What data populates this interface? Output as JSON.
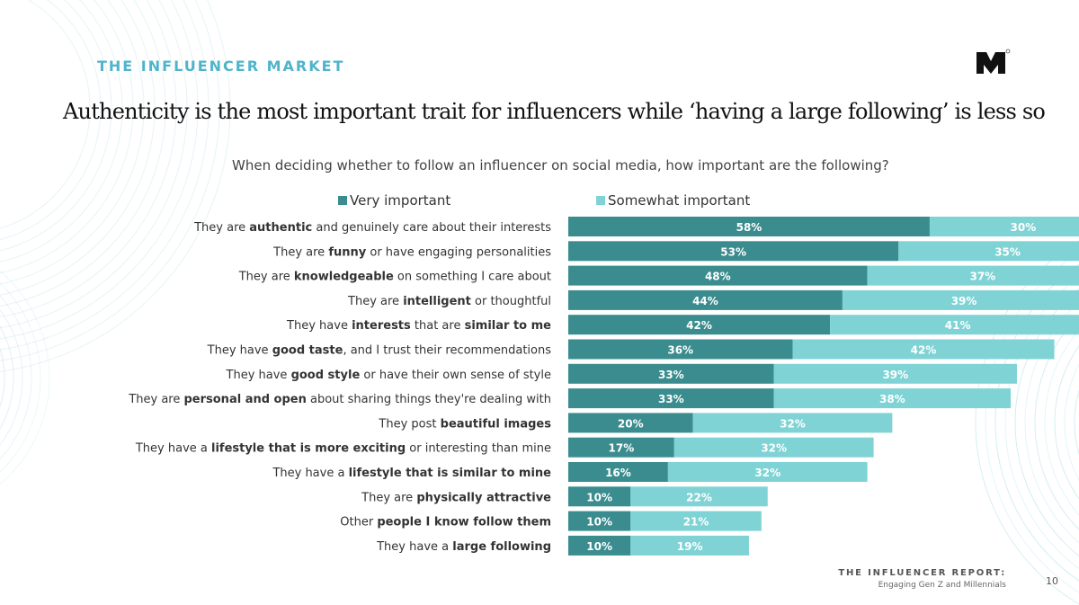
{
  "header": {
    "section_label": "THE INFLUENCER MARKET",
    "headline": "Authenticity is the most important trait for influencers while ‘having a large following’ is less so",
    "logo_icon": "m-logo-icon"
  },
  "footer": {
    "report_title": "THE INFLUENCER REPORT:",
    "report_subtitle": "Engaging Gen Z and Millennials",
    "page_number": "10"
  },
  "chart_data": {
    "type": "bar",
    "orientation": "horizontal",
    "stacked": true,
    "title": "When deciding whether to follow an influencer on social media, how important are the following?",
    "legend_position": "top",
    "grid": false,
    "xlim": [
      0,
      100
    ],
    "categories": [
      [
        {
          "t": "They are "
        },
        {
          "t": "authentic",
          "b": true
        },
        {
          "t": " and genuinely care about their interests"
        }
      ],
      [
        {
          "t": "They are "
        },
        {
          "t": "funny",
          "b": true
        },
        {
          "t": " or have engaging personalities"
        }
      ],
      [
        {
          "t": "They are "
        },
        {
          "t": "knowledgeable",
          "b": true
        },
        {
          "t": " on something I care about"
        }
      ],
      [
        {
          "t": "They are "
        },
        {
          "t": "intelligent",
          "b": true
        },
        {
          "t": " or thoughtful"
        }
      ],
      [
        {
          "t": "They have "
        },
        {
          "t": "interests",
          "b": true
        },
        {
          "t": " that are "
        },
        {
          "t": "similar to me",
          "b": true
        }
      ],
      [
        {
          "t": "They have "
        },
        {
          "t": "good taste",
          "b": true
        },
        {
          "t": ", and I trust their recommendations"
        }
      ],
      [
        {
          "t": "They have "
        },
        {
          "t": "good style",
          "b": true
        },
        {
          "t": " or have their own sense of style"
        }
      ],
      [
        {
          "t": "They are "
        },
        {
          "t": "personal and open",
          "b": true
        },
        {
          "t": " about sharing things they're dealing with"
        }
      ],
      [
        {
          "t": "They post "
        },
        {
          "t": "beautiful images",
          "b": true
        }
      ],
      [
        {
          "t": "They have a "
        },
        {
          "t": "lifestyle that is more exciting",
          "b": true
        },
        {
          "t": " or interesting than mine"
        }
      ],
      [
        {
          "t": "They have a "
        },
        {
          "t": "lifestyle that is similar to mine",
          "b": true
        }
      ],
      [
        {
          "t": "They are "
        },
        {
          "t": "physically attractive",
          "b": true
        }
      ],
      [
        {
          "t": "Other "
        },
        {
          "t": "people I know follow them",
          "b": true
        }
      ],
      [
        {
          "t": "They have a "
        },
        {
          "t": "large following",
          "b": true
        }
      ]
    ],
    "series": [
      {
        "name": "Very important",
        "color": "#3a8c8e",
        "values": [
          58,
          53,
          48,
          44,
          42,
          36,
          33,
          33,
          20,
          17,
          16,
          10,
          10,
          10
        ]
      },
      {
        "name": "Somewhat important",
        "color": "#7fd3d5",
        "values": [
          30,
          35,
          37,
          39,
          41,
          42,
          39,
          38,
          32,
          32,
          32,
          22,
          21,
          19
        ]
      }
    ],
    "value_suffix": "%"
  }
}
